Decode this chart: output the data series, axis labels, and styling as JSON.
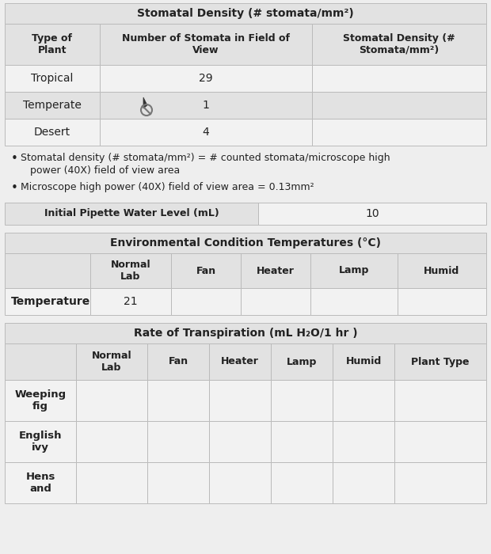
{
  "bg_color": "#eeeeee",
  "table1_title": "Stomatal Density (# stomata/mm²)",
  "table1_headers": [
    "Type of\nPlant",
    "Number of Stomata in Field of\nView",
    "Stomatal Density (#\nStomata/mm²)"
  ],
  "table1_rows": [
    [
      "Tropical",
      "29",
      ""
    ],
    [
      "Temperate",
      "1",
      ""
    ],
    [
      "Desert",
      "4",
      ""
    ]
  ],
  "bullet1_line1": "Stomatal density (# stomata/mm²) = # counted stomata/microscope high",
  "bullet1_line2": "power (40X) field of view area",
  "bullet2": "Microscope high power (40X) field of view area = 0.13mm²",
  "pipette_label": "Initial Pipette Water Level (mL)",
  "pipette_value": "10",
  "table2_title": "Environmental Condition Temperatures (°C)",
  "table2_headers": [
    "",
    "Normal\nLab",
    "Fan",
    "Heater",
    "Lamp",
    "Humid"
  ],
  "table2_rows": [
    [
      "Temperature",
      "21",
      "",
      "",
      "",
      ""
    ]
  ],
  "table3_title": "Rate of Transpiration (mL H₂O/1 hr )",
  "table3_headers": [
    "",
    "Normal\nLab",
    "Fan",
    "Heater",
    "Lamp",
    "Humid",
    "Plant Type"
  ],
  "table3_rows": [
    [
      "Weeping\nfig",
      "",
      "",
      "",
      "",
      "",
      ""
    ],
    [
      "English\nivy",
      "",
      "",
      "",
      "",
      "",
      ""
    ],
    [
      "Hens\nand",
      "",
      "",
      "",
      "",
      "",
      ""
    ]
  ],
  "cell_bg_light": "#e2e2e2",
  "cell_bg_white": "#f2f2f2",
  "border_color": "#bbbbbb",
  "text_color": "#222222",
  "text_color_light": "#555555"
}
